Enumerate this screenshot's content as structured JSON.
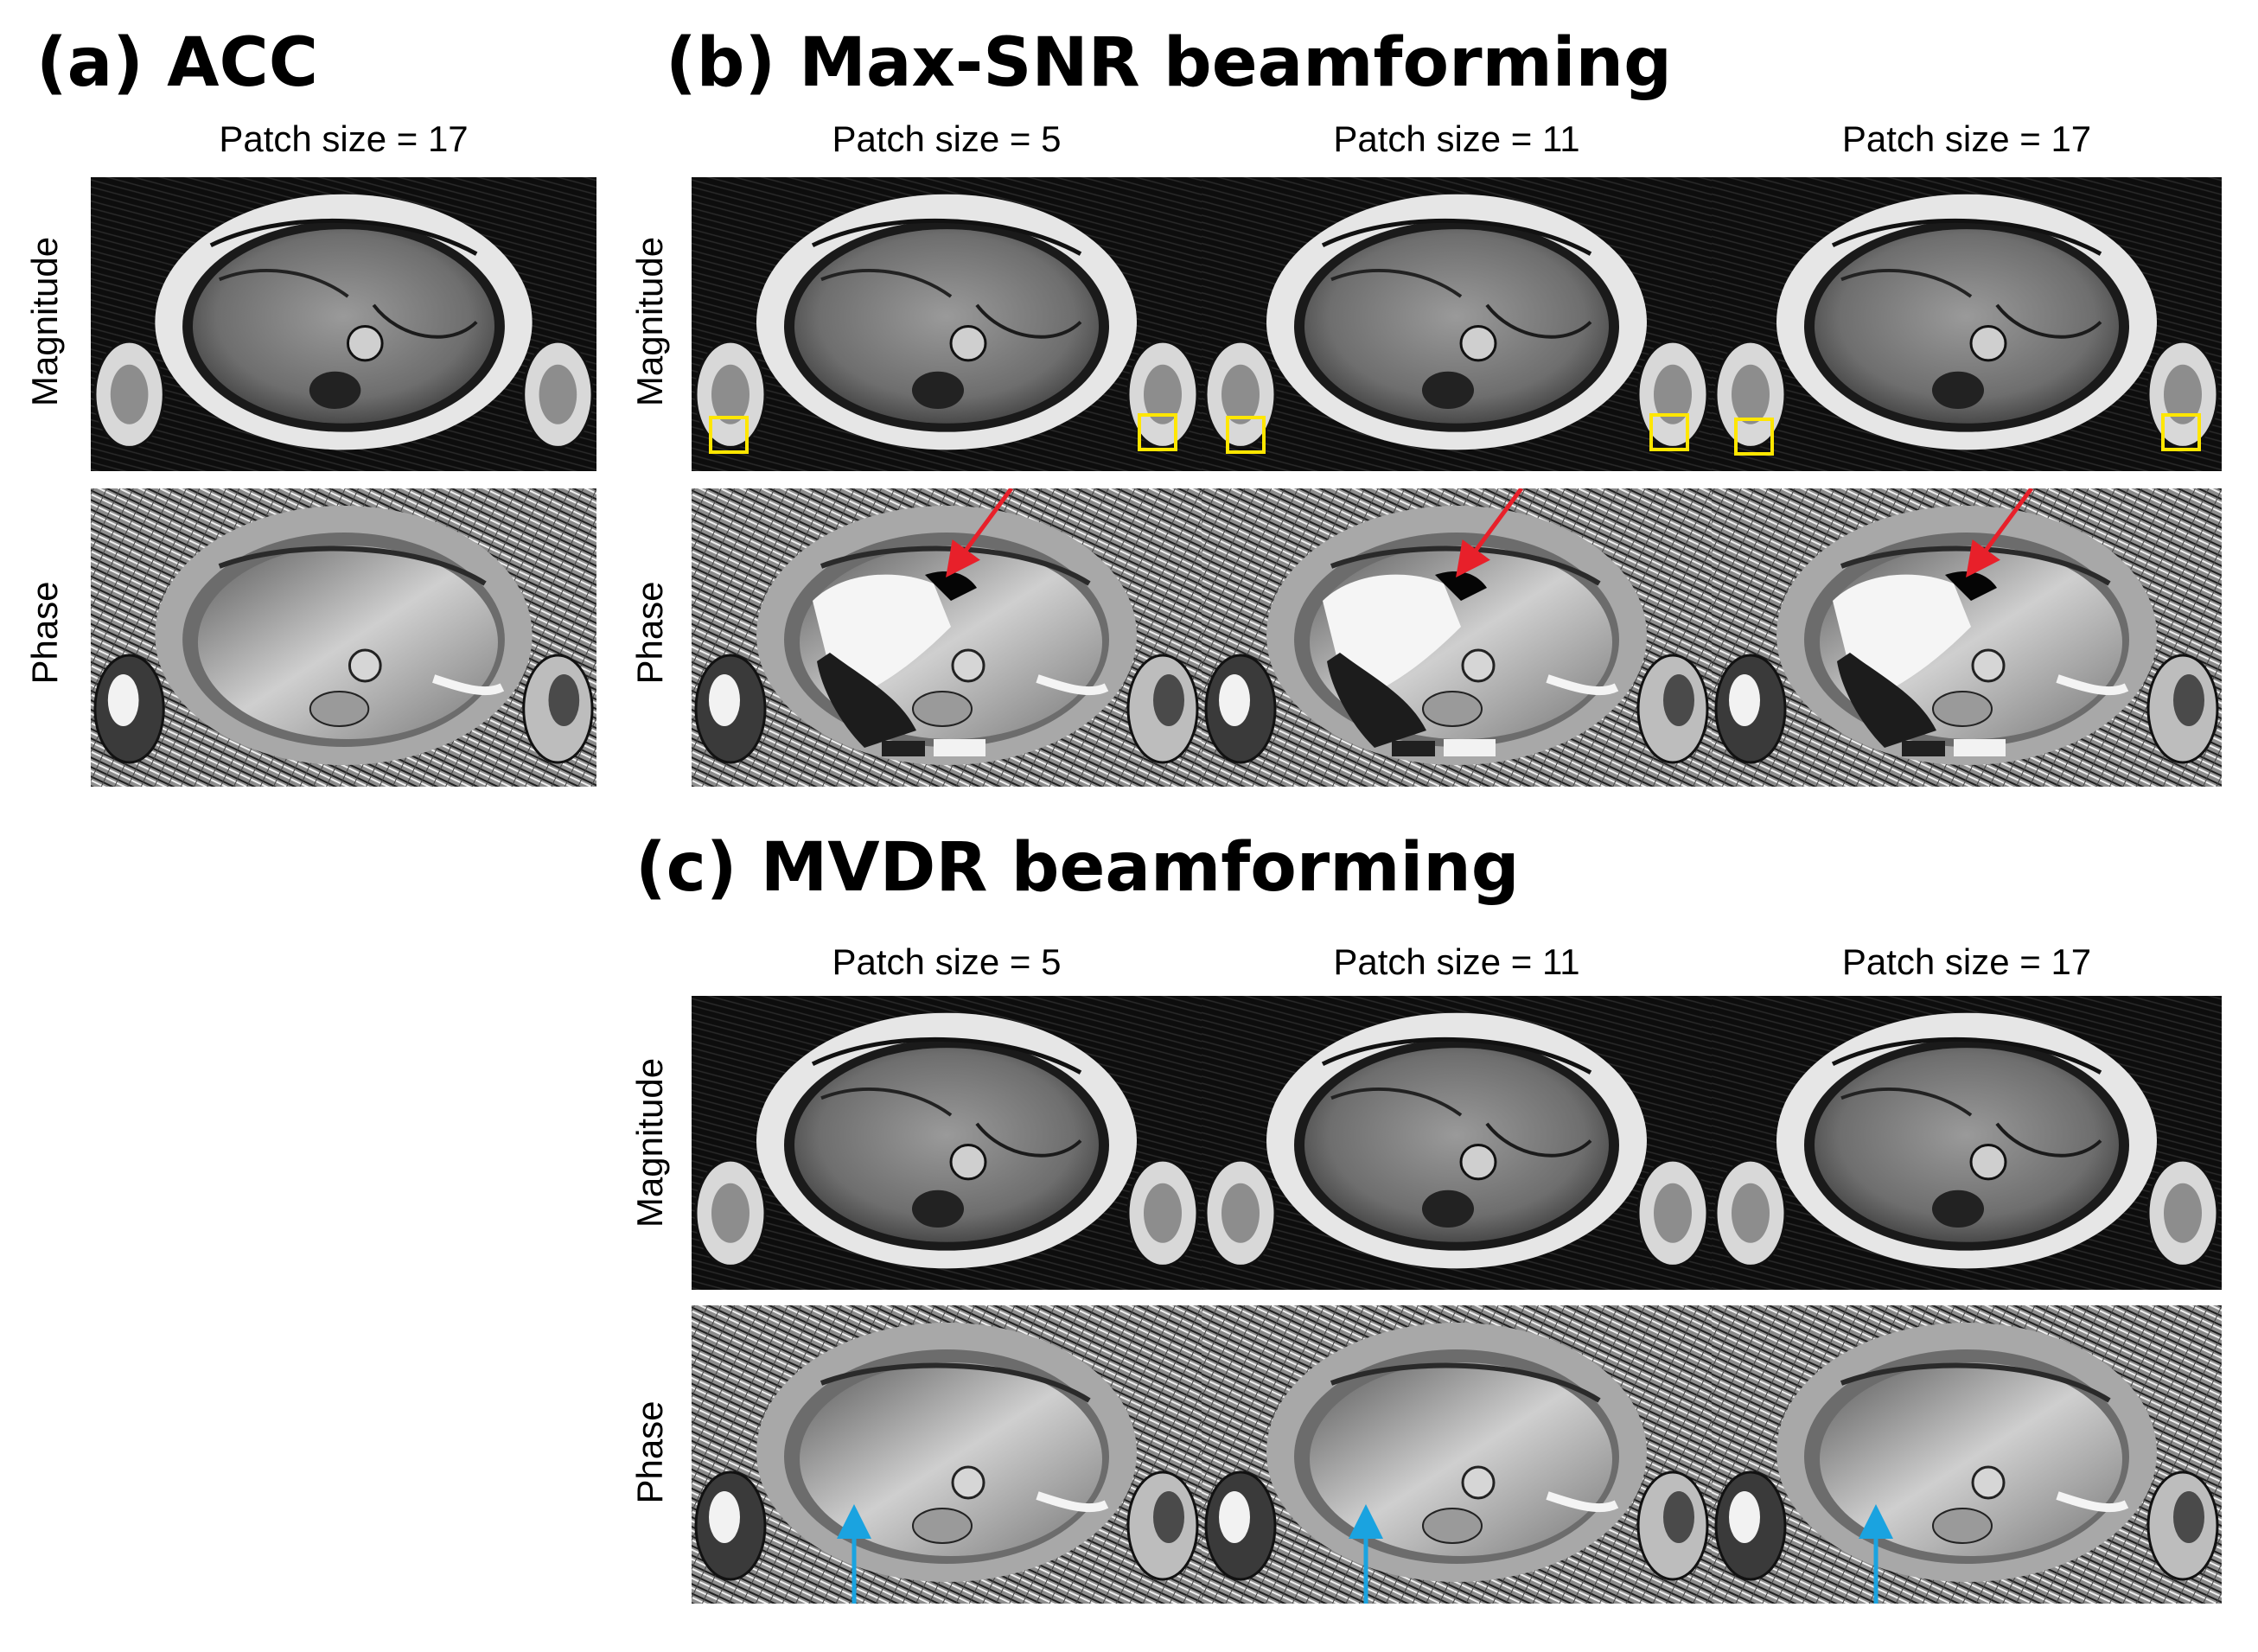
{
  "figure": {
    "sections": [
      {
        "id": "a",
        "title": "(a) ACC",
        "columns": [
          "Patch size  = 17"
        ],
        "rows": [
          "Magnitude",
          "Phase"
        ]
      },
      {
        "id": "b",
        "title": "(b) Max-SNR beamforming",
        "columns": [
          "Patch size  = 5",
          "Patch size  = 11",
          "Patch size  = 17"
        ],
        "rows": [
          "Magnitude",
          "Phase"
        ]
      },
      {
        "id": "c",
        "title": "(c) MVDR beamforming",
        "columns": [
          "Patch size  = 5",
          "Patch size  = 11",
          "Patch size  = 17"
        ],
        "rows": [
          "Magnitude",
          "Phase"
        ]
      }
    ],
    "annotation_colors": {
      "box": "#ffe600",
      "red_arrow": "#e8202a",
      "blue_arrow": "#1aa3e0"
    }
  }
}
